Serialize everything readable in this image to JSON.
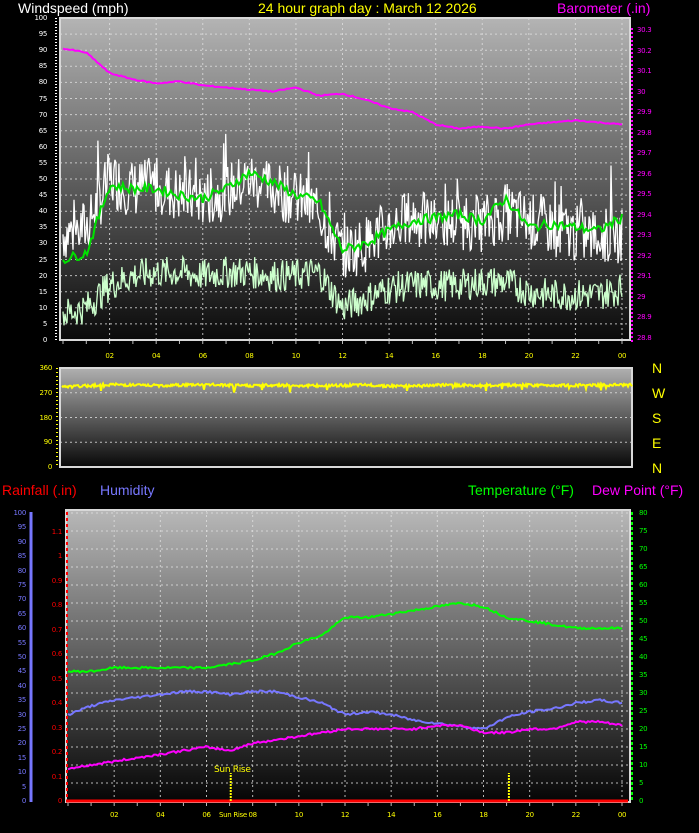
{
  "header": {
    "left_title": "Windspeed (mph)",
    "center_title": "24 hour graph day : March 12 2026",
    "right_title": "Barometer (.in)"
  },
  "colors": {
    "windspeed_gust": "#ffffff",
    "windspeed_avg": "#ccffcc",
    "wind_avg_line": "#00e000",
    "barometer": "#ff00ff",
    "wind_direction": "#ffff00",
    "rainfall": "#ff0000",
    "humidity": "#7777ff",
    "temperature": "#00ff00",
    "dewpoint": "#ff00ff",
    "title_center": "#ffff00",
    "sunrise_marker": "#ffff00"
  },
  "wind_dir_labels": [
    "N",
    "W",
    "S",
    "E",
    "N"
  ],
  "bottom_header": {
    "rainfall_label": "Rainfall (.in)",
    "humidity_label": "Humidity",
    "temperature_label": "Temperature (°F)",
    "dewpoint_label": "Dew Point (°F)"
  },
  "annotations": {
    "sunrise_upper": "Sun Rise",
    "sunrise_axis": "Sun Rise"
  },
  "chart_data": [
    {
      "type": "line",
      "title": "Windspeed (mph) / Barometer (.in) — 24 hour graph day : March 12 2026",
      "xlabel": "",
      "ylabel": "Windspeed (mph)",
      "y2label": "Barometer (.in)",
      "x_tick_labels": [
        "02",
        "04",
        "06",
        "08",
        "10",
        "12",
        "14",
        "16",
        "18",
        "20",
        "22",
        "00"
      ],
      "ylim": [
        0,
        100
      ],
      "y_ticks": [
        0,
        5,
        10,
        15,
        20,
        25,
        30,
        35,
        40,
        45,
        50,
        55,
        60,
        65,
        70,
        75,
        80,
        85,
        90,
        95,
        100
      ],
      "y2lim": [
        28.8,
        30.3
      ],
      "y2_ticks": [
        28.8,
        28.9,
        29.0,
        29.1,
        29.2,
        29.3,
        29.4,
        29.5,
        29.6,
        29.7,
        29.8,
        29.9,
        30.0,
        30.1,
        30.2,
        30.3
      ],
      "grid": true,
      "x_hours": [
        0,
        1,
        2,
        3,
        4,
        5,
        6,
        7,
        8,
        9,
        10,
        11,
        12,
        13,
        14,
        15,
        16,
        17,
        18,
        19,
        20,
        21,
        22,
        23,
        24
      ],
      "series": [
        {
          "name": "Wind gust (mph)",
          "axis": "left",
          "values": [
            33,
            35,
            50,
            47,
            48,
            45,
            44,
            46,
            50,
            47,
            44,
            40,
            27,
            30,
            35,
            38,
            36,
            37,
            36,
            40,
            37,
            35,
            33,
            32,
            33
          ]
        },
        {
          "name": "Average wind (mph)",
          "axis": "left",
          "values": [
            25,
            27,
            48,
            47,
            47,
            45,
            44,
            47,
            52,
            49,
            45,
            43,
            28,
            30,
            34,
            37,
            38,
            39,
            37,
            44,
            35,
            36,
            35,
            34,
            38
          ]
        },
        {
          "name": "Wind speed (mph)",
          "axis": "left",
          "values": [
            8,
            10,
            17,
            20,
            21,
            21,
            20,
            21,
            21,
            20,
            20,
            21,
            10,
            13,
            16,
            17,
            17,
            17,
            18,
            18,
            15,
            14,
            14,
            14,
            16
          ]
        },
        {
          "name": "Barometer (.in)",
          "axis": "right",
          "values": [
            30.21,
            30.19,
            30.09,
            30.06,
            30.04,
            30.05,
            30.03,
            30.02,
            30.01,
            30.0,
            30.02,
            29.98,
            29.99,
            29.96,
            29.92,
            29.9,
            29.84,
            29.82,
            29.83,
            29.82,
            29.84,
            29.85,
            29.86,
            29.85,
            29.84
          ]
        }
      ]
    },
    {
      "type": "line",
      "title": "Wind direction",
      "ylim": [
        0,
        360
      ],
      "y_ticks": [
        0,
        90,
        180,
        270,
        360
      ],
      "y_tick_labels_right": [
        "N",
        "W",
        "S",
        "E",
        "N"
      ],
      "x_tick_labels": [
        "02",
        "04",
        "06",
        "08",
        "10",
        "12",
        "14",
        "16",
        "18",
        "20",
        "22",
        "00"
      ],
      "grid": true,
      "series": [
        {
          "name": "Wind direction (deg)",
          "values": [
            290,
            295,
            300,
            298,
            296,
            298,
            300,
            297,
            296,
            298,
            296,
            295,
            297,
            298,
            294,
            296,
            298,
            297,
            296,
            298,
            297,
            298,
            297,
            298,
            298
          ]
        }
      ]
    },
    {
      "type": "line",
      "title": "Rainfall (.in) / Humidity / Temperature (°F) / Dew Point (°F)",
      "x_tick_labels": [
        "02",
        "04",
        "06",
        "08",
        "10",
        "12",
        "14",
        "16",
        "18",
        "20",
        "22",
        "00"
      ],
      "humidity_ylim": [
        0,
        100
      ],
      "humidity_ticks": [
        0,
        5,
        10,
        15,
        20,
        25,
        30,
        35,
        40,
        45,
        50,
        55,
        60,
        65,
        70,
        75,
        80,
        85,
        90,
        95,
        100
      ],
      "rainfall_ylim": [
        0,
        1.2
      ],
      "rainfall_ticks": [
        0,
        0.1,
        0.2,
        0.3,
        0.4,
        0.5,
        0.6,
        0.7,
        0.8,
        0.9,
        1,
        1.1
      ],
      "temperature_ylim": [
        0,
        80
      ],
      "temperature_ticks": [
        0,
        5,
        10,
        15,
        20,
        25,
        30,
        35,
        40,
        45,
        50,
        55,
        60,
        65,
        70,
        75,
        80
      ],
      "grid": true,
      "annotations": [
        {
          "label": "Sun Rise",
          "hour": 7.05
        },
        {
          "label": "",
          "hour": 19.1
        }
      ],
      "x_hours": [
        0,
        1,
        2,
        3,
        4,
        5,
        6,
        7,
        8,
        9,
        10,
        11,
        12,
        13,
        14,
        15,
        16,
        17,
        18,
        19,
        20,
        21,
        22,
        23,
        24
      ],
      "series": [
        {
          "name": "Rainfall (.in)",
          "axis": "rainfall",
          "values": [
            0,
            0,
            0,
            0,
            0,
            0,
            0,
            0,
            0,
            0,
            0,
            0,
            0,
            0,
            0,
            0,
            0,
            0,
            0,
            0,
            0,
            0,
            0,
            0,
            0
          ]
        },
        {
          "name": "Humidity (%)",
          "axis": "humidity",
          "values": [
            30,
            33,
            35,
            36,
            37,
            38,
            38,
            37,
            38,
            38,
            36,
            34,
            30,
            31,
            30,
            28,
            27,
            26,
            25,
            29,
            31,
            32,
            34,
            35,
            34
          ]
        },
        {
          "name": "Temperature (°F)",
          "axis": "temperature",
          "values": [
            36,
            36,
            37,
            37,
            37,
            37,
            37,
            38,
            39,
            41,
            44,
            46,
            51,
            51,
            52,
            53,
            54,
            55,
            54,
            51,
            50,
            49,
            48,
            48,
            48
          ]
        },
        {
          "name": "Dew Point (°F)",
          "axis": "temperature",
          "values": [
            9,
            10,
            11,
            12,
            13,
            14,
            15,
            14,
            16,
            17,
            18,
            19,
            20,
            20,
            20,
            20,
            21,
            21,
            19,
            19,
            20,
            20,
            22,
            22,
            21
          ]
        }
      ]
    }
  ]
}
